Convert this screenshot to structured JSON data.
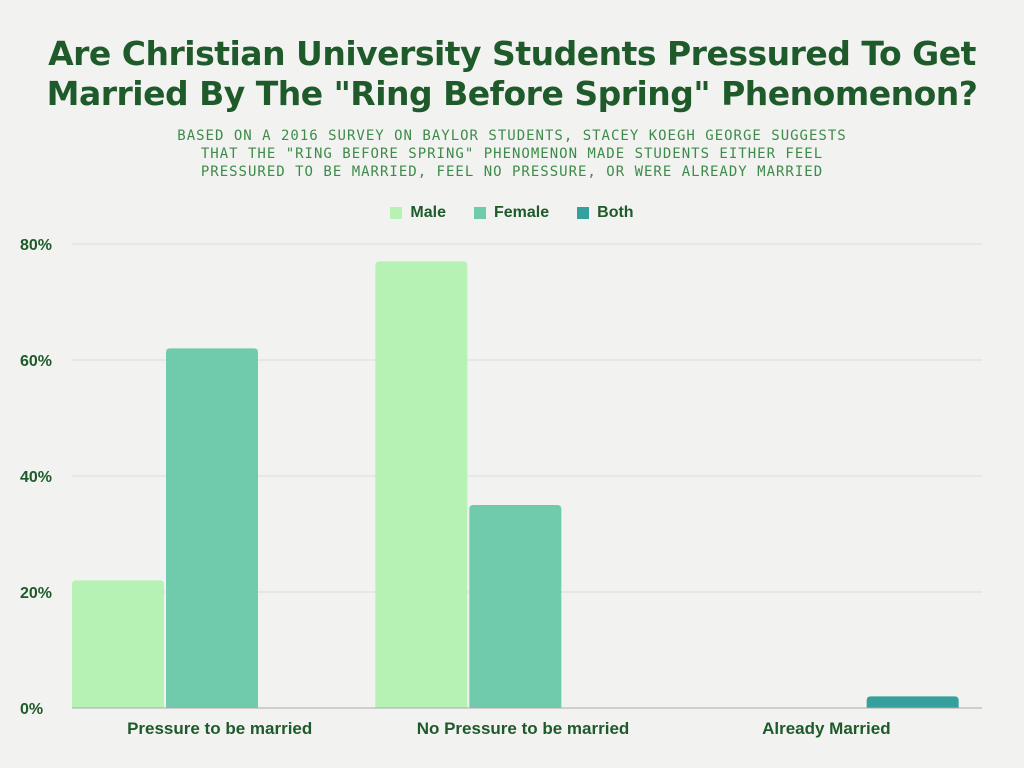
{
  "title_lines": [
    "Are Christian University Students  Pressured To Get",
    "Married By The \"Ring Before Spring\" Phenomenon?"
  ],
  "subtitle_lines": [
    "BASED ON A 2016 SURVEY ON BAYLOR STUDENTS, STACEY KOEGH GEORGE SUGGESTS",
    "THAT THE \"RING BEFORE SPRING\" PHENOMENON MADE STUDENTS EITHER FEEL",
    "PRESSURED TO BE MARRIED, FEEL NO PRESSURE, OR WERE ALREADY MARRIED"
  ],
  "chart_data": {
    "type": "bar",
    "title": "Are Christian University Students  Pressured To Get Married By The \"Ring Before Spring\" Phenomenon?",
    "subtitle": "BASED ON A 2016 SURVEY ON BAYLOR STUDENTS, STACEY KOEGH GEORGE SUGGESTS THAT THE \"RING BEFORE SPRING\" PHENOMENON MADE STUDENTS EITHER FEEL PRESSURED TO BE MARRIED, FEEL NO PRESSURE, OR WERE ALREADY MARRIED",
    "categories": [
      "Pressure to be married",
      "No Pressure to be married",
      "Already Married"
    ],
    "series": [
      {
        "name": "Male",
        "color": "#b5f2b4",
        "values": [
          22,
          77,
          0
        ]
      },
      {
        "name": "Female",
        "color": "#70cbac",
        "values": [
          62,
          35,
          0
        ]
      },
      {
        "name": "Both",
        "color": "#36a09c",
        "values": [
          0,
          0,
          2
        ]
      }
    ],
    "ylim": [
      0,
      80
    ],
    "yticks": [
      0,
      20,
      40,
      60,
      80
    ],
    "ytick_labels": [
      "0%",
      "20%",
      "40%",
      "60%",
      "80%"
    ],
    "xlabel": "",
    "ylabel": "",
    "grid": true,
    "legend_position": "top-center"
  }
}
